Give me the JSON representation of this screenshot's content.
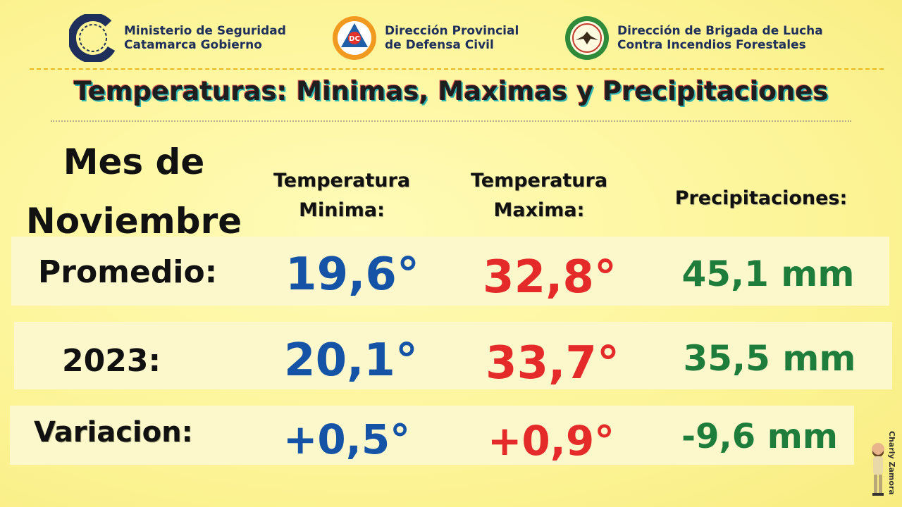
{
  "header": {
    "logos": [
      {
        "icon": "ministry-c-logo-icon",
        "line1": "Ministerio de Seguridad",
        "line2": "Catamarca Gobierno"
      },
      {
        "icon": "defensa-civil-triangle-icon",
        "badge": "DC",
        "line1": "Dirección Provincial",
        "line2": "de Defensa Civil"
      },
      {
        "icon": "brigada-eagle-seal-icon",
        "line1": "Dirección de Brigada de Lucha",
        "line2": "Contra Incendios Forestales"
      }
    ]
  },
  "title": "Temperaturas: Minimas, Maximas y Precipitaciones",
  "month": {
    "line1": "Mes de",
    "line2": "Noviembre"
  },
  "columns": {
    "min": {
      "line1": "Temperatura",
      "line2": "Minima:"
    },
    "max": {
      "line1": "Temperatura",
      "line2": "Maxima:"
    },
    "precip": "Precipitaciones:"
  },
  "rows": [
    {
      "label": "Promedio:",
      "min": "19,6°",
      "max": "32,8°",
      "precip": "45,1 mm"
    },
    {
      "label": "2023:",
      "min": "20,1°",
      "max": "33,7°",
      "precip": "35,5 mm"
    },
    {
      "label": "Variacion:",
      "min": "+0,5°",
      "max": "+0,9°",
      "precip": "-9,6 mm"
    }
  ],
  "credit": "Charly Zamora",
  "colors": {
    "min": "#1553a6",
    "max": "#e52a2a",
    "precip": "#1e7d3a",
    "background": "#fdf59a"
  }
}
